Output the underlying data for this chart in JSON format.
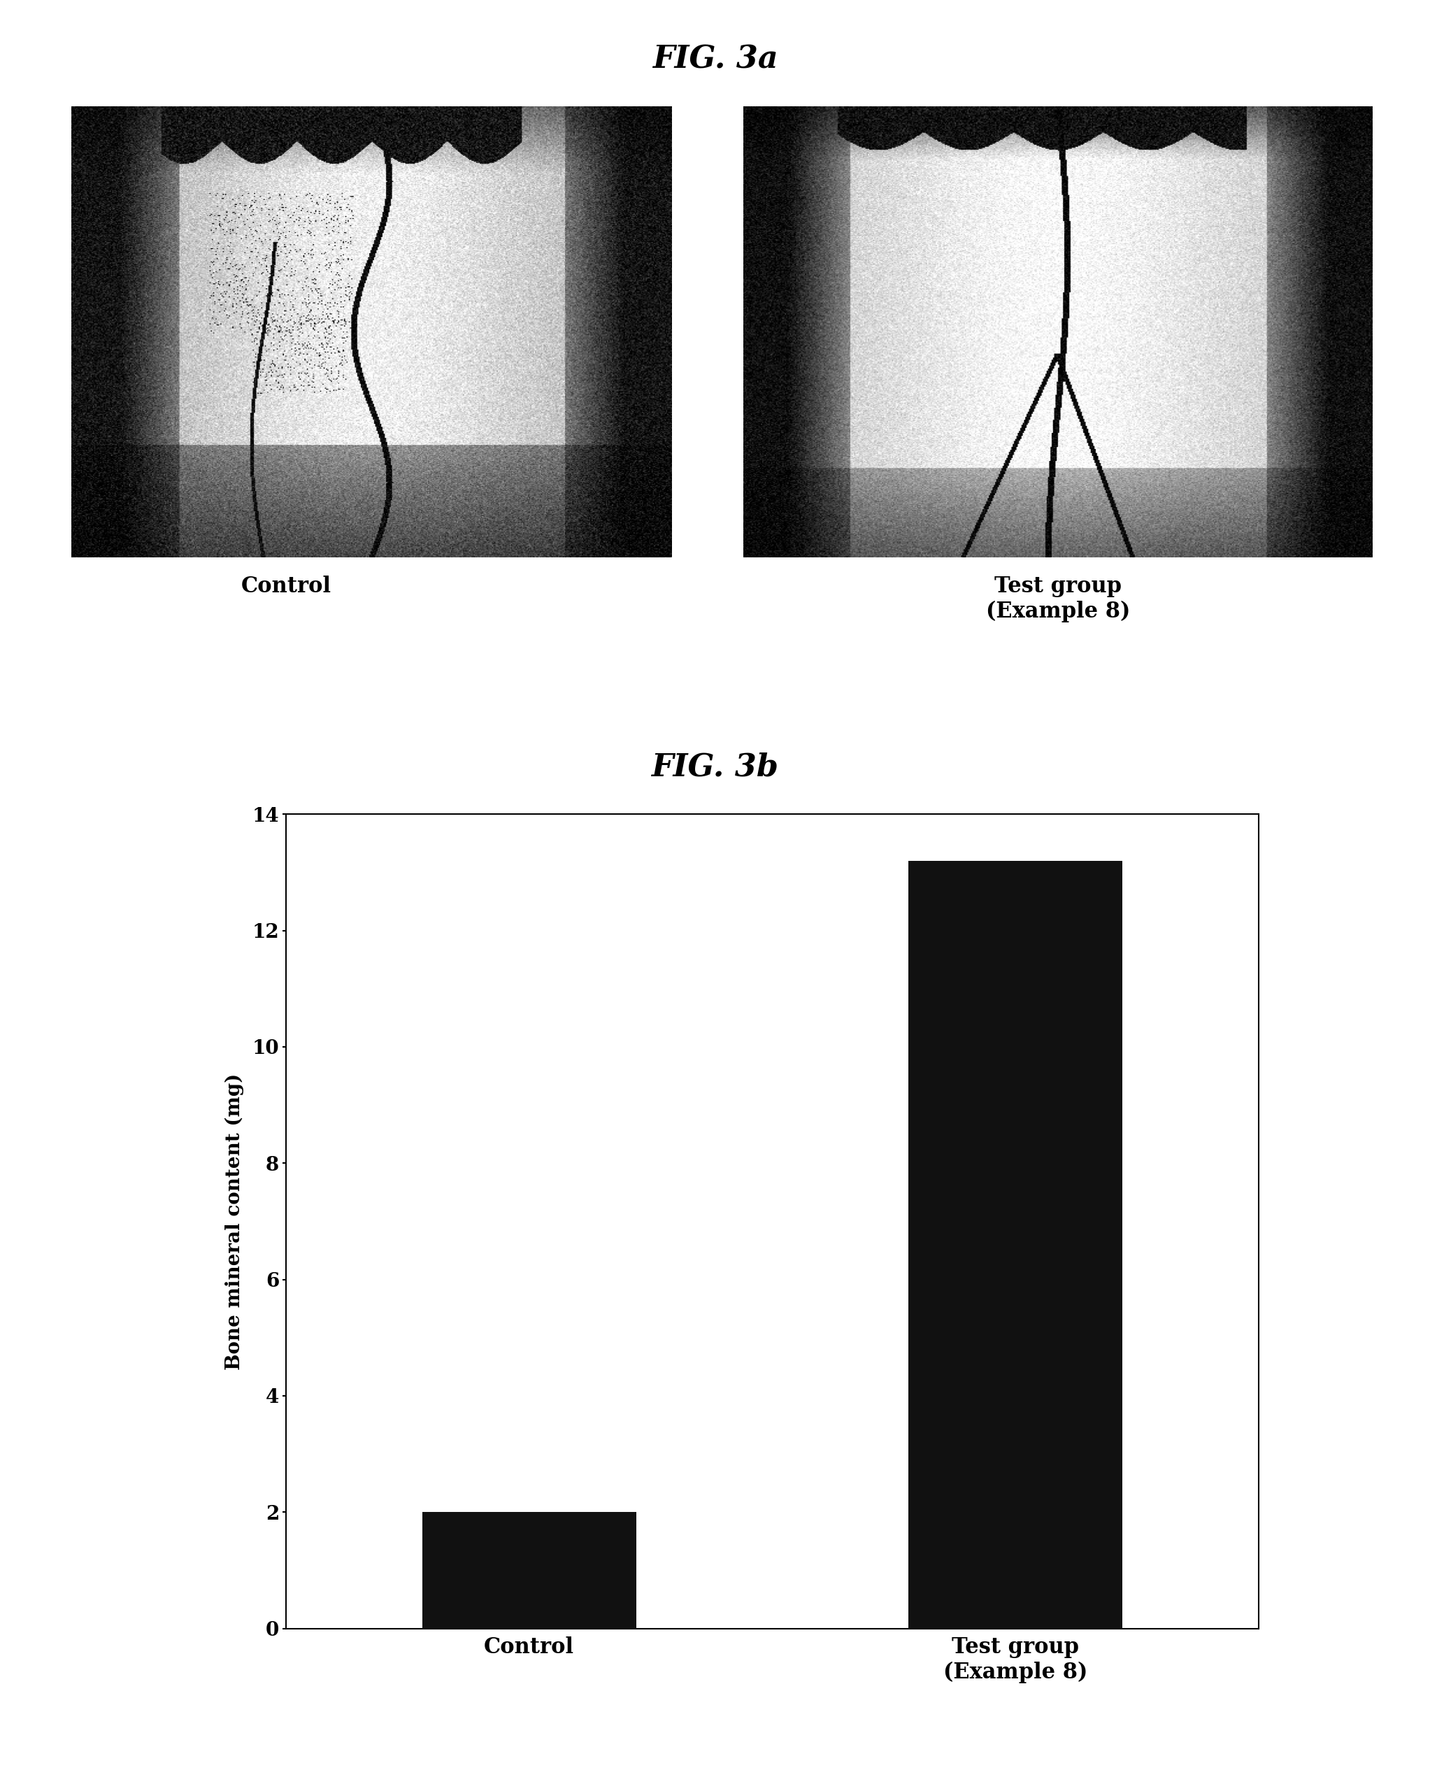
{
  "fig3a_title": "FIG. 3a",
  "fig3b_title": "FIG. 3b",
  "fig3a_label_control": "Control",
  "fig3a_label_test": "Test group\n(Example 8)",
  "ylabel": "Bone mineral content (mg)",
  "bar_values": [
    2.0,
    13.2
  ],
  "bar_categories": [
    "Control",
    "Test group\n(Example 8)"
  ],
  "bar_color": "#111111",
  "ylim": [
    0,
    14
  ],
  "yticks": [
    0,
    2,
    4,
    6,
    8,
    10,
    12,
    14
  ],
  "bg_color": "#ffffff",
  "title_fontsize": 32,
  "label_fontsize": 22,
  "tick_fontsize": 20,
  "ylabel_fontsize": 20,
  "bar_label_fontsize": 22
}
